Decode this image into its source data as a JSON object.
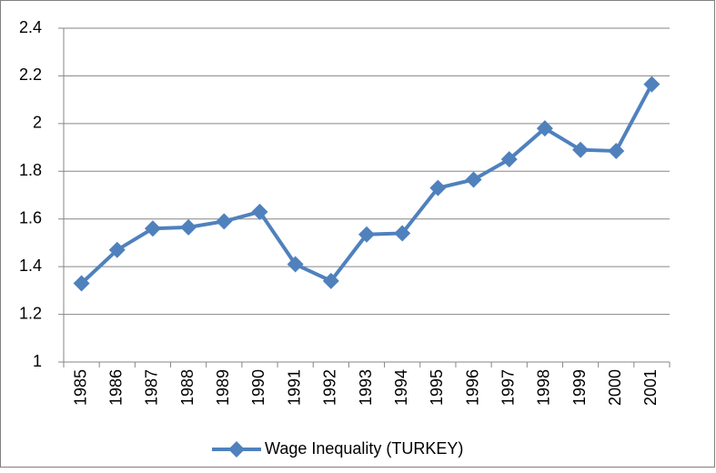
{
  "chart_data": {
    "type": "line",
    "categories": [
      "1985",
      "1986",
      "1987",
      "1988",
      "1989",
      "1990",
      "1991",
      "1992",
      "1993",
      "1994",
      "1995",
      "1996",
      "1997",
      "1998",
      "1999",
      "2000",
      "2001"
    ],
    "series": [
      {
        "name": "Wage Inequality (TURKEY)",
        "color": "#4f81bd",
        "values": [
          1.33,
          1.47,
          1.56,
          1.565,
          1.59,
          1.63,
          1.41,
          1.34,
          1.535,
          1.54,
          1.73,
          1.765,
          1.85,
          1.98,
          1.89,
          1.885,
          2.165
        ]
      }
    ],
    "ylim": [
      1,
      2.4
    ],
    "yticks": [
      1,
      1.2,
      1.4,
      1.6,
      1.8,
      2,
      2.2,
      2.4
    ],
    "grid": true,
    "legend": "bottom"
  }
}
